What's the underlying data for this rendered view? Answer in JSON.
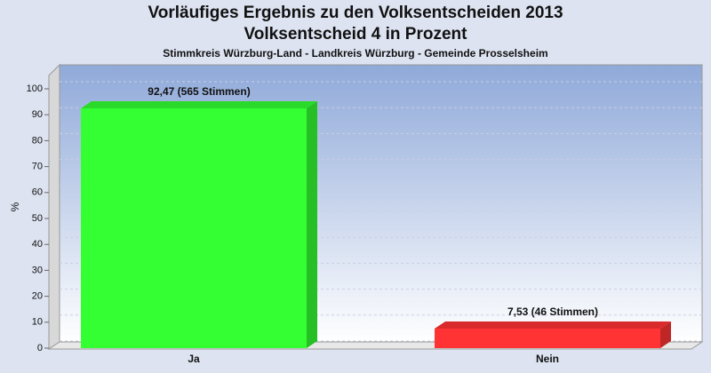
{
  "chart_data": {
    "type": "bar",
    "title": "Vorläufiges Ergebnis zu den Volksentscheiden 2013",
    "title2": "Volksentscheid 4 in Prozent",
    "subtitle": "Stimmkreis Würzburg-Land - Landkreis Würzburg - Gemeinde Prosselsheim",
    "y_label": "%",
    "categories": [
      "Ja",
      "Nein"
    ],
    "values": [
      92.47,
      7.53
    ],
    "value_labels": [
      "92,47 (565 Stimmen)",
      "7,53 (46 Stimmen)"
    ],
    "colors": [
      "#33ff33",
      "#ff3333"
    ],
    "ylim": [
      0,
      100
    ],
    "yticks": [
      0,
      10,
      20,
      30,
      40,
      50,
      60,
      70,
      80,
      90,
      100
    ],
    "grid": true
  }
}
